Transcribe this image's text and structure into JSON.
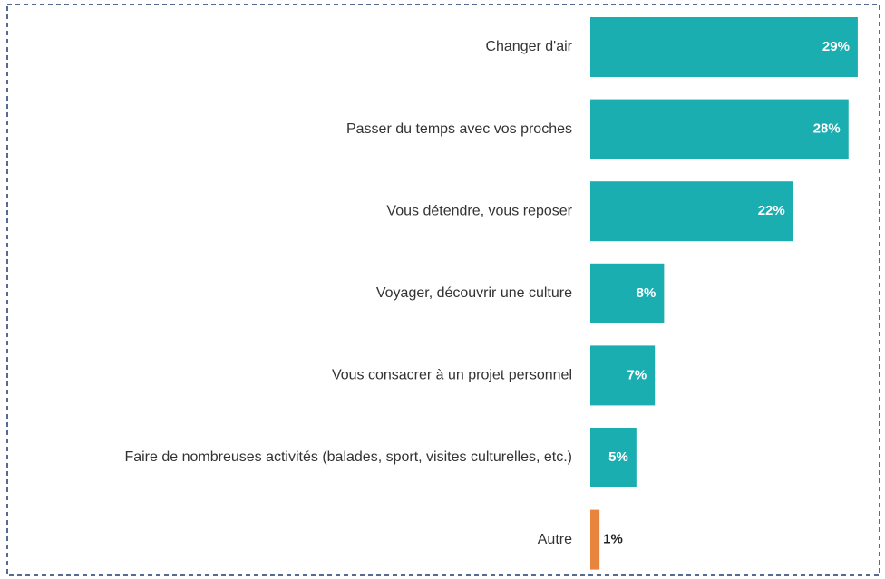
{
  "chart_data": {
    "type": "bar",
    "orientation": "horizontal",
    "categories": [
      "Changer d'air",
      "Passer du temps avec vos proches",
      "Vous détendre, vous reposer",
      "Voyager, découvrir une culture",
      "Vous consacrer à un projet personnel",
      "Faire de nombreuses activités (balades, sport, visites culturelles, etc.)",
      "Autre"
    ],
    "values": [
      29,
      28,
      22,
      8,
      7,
      5,
      1
    ],
    "value_labels": [
      "29%",
      "28%",
      "22%",
      "8%",
      "7%",
      "5%",
      "1%"
    ],
    "colors": [
      "#1aaeb0",
      "#1aaeb0",
      "#1aaeb0",
      "#1aaeb0",
      "#1aaeb0",
      "#1aaeb0",
      "#e8843c"
    ]
  }
}
